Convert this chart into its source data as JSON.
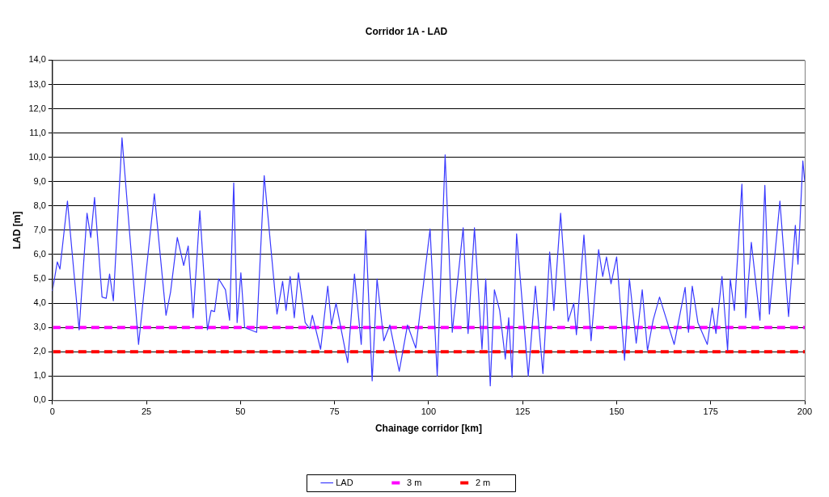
{
  "chart_data": {
    "type": "line",
    "title": "Corridor 1A - LAD",
    "xlabel": "Chainage corridor [km]",
    "ylabel": "LAD [m]",
    "x": [
      0,
      1.3,
      2,
      4,
      7.1,
      9.2,
      10.2,
      11.2,
      13.2,
      14.3,
      15.2,
      16.2,
      18.5,
      22.9,
      27.1,
      30.2,
      31.4,
      33.2,
      34.9,
      36.1,
      37.4,
      39.2,
      41.2,
      42.2,
      43.1,
      44.2,
      46,
      47.1,
      48.2,
      49.1,
      50.1,
      51.1,
      54.3,
      56.3,
      59.7,
      61.2,
      62.1,
      63.2,
      64.3,
      65.4,
      67.2,
      68.4,
      69.1,
      71.3,
      73.2,
      74.2,
      75.4,
      78.5,
      80.3,
      82.1,
      83.3,
      85,
      86.3,
      88.1,
      89.7,
      92.2,
      94.4,
      96.6,
      100.4,
      102.3,
      104.4,
      106.3,
      109.2,
      110.5,
      112.2,
      114.2,
      115.2,
      116.4,
      117.5,
      118.9,
      120.4,
      121.3,
      122.2,
      123.4,
      126.5,
      128.4,
      130.4,
      132.2,
      133.3,
      135.1,
      137.1,
      138.6,
      139.3,
      141.3,
      143.2,
      145.2,
      146.3,
      147.3,
      148.5,
      150,
      152.1,
      153.4,
      155.2,
      156.8,
      158.2,
      159.7,
      161.4,
      163.3,
      165.3,
      168.2,
      169.1,
      170.1,
      171.6,
      174.1,
      175.4,
      176.4,
      178,
      179.5,
      180.2,
      181.3,
      183.3,
      184.3,
      185.8,
      188.1,
      189.4,
      190.6,
      193.4,
      195.7,
      197.5,
      198.2,
      199.5,
      200
    ],
    "series": [
      {
        "name": "LAD",
        "color": "#3a3aff",
        "values": [
          4.5,
          5.7,
          5.4,
          8.2,
          2.9,
          7.7,
          6.7,
          8.35,
          4.25,
          4.2,
          5.2,
          4.1,
          10.8,
          2.3,
          8.5,
          3.5,
          4.45,
          6.7,
          5.55,
          6.35,
          3.4,
          7.8,
          2.9,
          3.7,
          3.65,
          5,
          4.55,
          3.3,
          8.95,
          3.2,
          5.25,
          3,
          2.8,
          9.25,
          3.55,
          4.9,
          3.7,
          5.1,
          3.4,
          5.25,
          3.2,
          2.95,
          3.5,
          2.1,
          4.7,
          3.1,
          4,
          1.55,
          5.2,
          2.3,
          7,
          0.8,
          5,
          2.45,
          3.1,
          1.2,
          3.1,
          2.15,
          7.05,
          1,
          10.1,
          2.8,
          7.1,
          2.75,
          7.1,
          2.1,
          5,
          0.6,
          4.55,
          3.7,
          1.7,
          3.4,
          0.95,
          6.85,
          1,
          4.7,
          1.1,
          6.1,
          3.7,
          7.7,
          3.25,
          4,
          2.7,
          6.8,
          2.45,
          6.2,
          5.1,
          5.9,
          4.8,
          5.9,
          1.65,
          5,
          2.35,
          4.55,
          2.05,
          3.3,
          4.25,
          3.3,
          2.3,
          4.65,
          2.8,
          4.7,
          3.2,
          2.3,
          3.8,
          2.75,
          5.1,
          2.05,
          5,
          3.7,
          8.9,
          3.4,
          6.5,
          3.3,
          8.85,
          3.55,
          8.2,
          3.45,
          7.2,
          5.6,
          9.85,
          9
        ]
      }
    ],
    "ref_lines": [
      {
        "axis": "y",
        "value": 3,
        "label": "3 m",
        "color": "#ff00ff",
        "line_style": "dashed"
      },
      {
        "axis": "y",
        "value": 2,
        "label": "2 m",
        "color": "#ff0000",
        "line_style": "dashed"
      }
    ],
    "xlim": [
      0,
      200
    ],
    "xticks": [
      0,
      25,
      50,
      75,
      100,
      125,
      150,
      175,
      200
    ],
    "ylim": [
      0,
      14
    ],
    "yticks": [
      {
        "value": 0,
        "label": "0,0"
      },
      {
        "value": 1,
        "label": "1,0"
      },
      {
        "value": 2,
        "label": "2,0"
      },
      {
        "value": 3,
        "label": "3,0"
      },
      {
        "value": 4,
        "label": "4,0"
      },
      {
        "value": 5,
        "label": "5,0"
      },
      {
        "value": 6,
        "label": "6,0"
      },
      {
        "value": 7,
        "label": "7,0"
      },
      {
        "value": 8,
        "label": "8,0"
      },
      {
        "value": 9,
        "label": "9,0"
      },
      {
        "value": 10,
        "label": "10,0"
      },
      {
        "value": 11,
        "label": "11,0"
      },
      {
        "value": 12,
        "label": "12,0"
      },
      {
        "value": 13,
        "label": "13,0"
      },
      {
        "value": 14,
        "label": "14,0"
      }
    ],
    "grid": "y",
    "legend": "bottom",
    "marker": "none",
    "line_style": "solid"
  }
}
